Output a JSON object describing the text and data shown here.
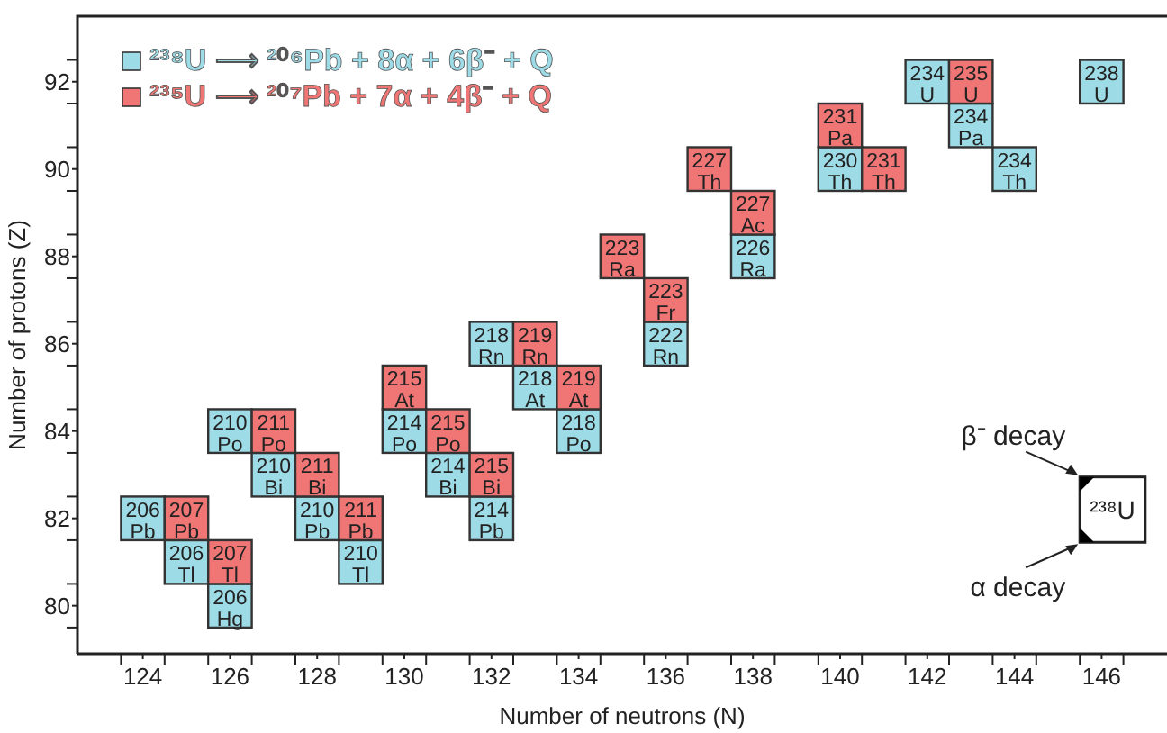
{
  "chart_data": {
    "type": "scatter",
    "marker": "square",
    "legend": "top left",
    "xlabel": "Number of neutrons (N)",
    "ylabel": "Number of protons (Z)",
    "xlim": [
      122.5,
      147.5
    ],
    "ylim": [
      78.9,
      93.5
    ],
    "xticks": [
      {
        "value": 123.5,
        "label": null
      },
      124,
      {
        "value": 124.5,
        "label": null
      },
      {
        "value": 125.5,
        "label": null
      },
      126,
      {
        "value": 126.5,
        "label": null
      },
      {
        "value": 127.5,
        "label": null
      },
      128,
      {
        "value": 128.5,
        "label": null
      },
      {
        "value": 129.5,
        "label": null
      },
      130,
      {
        "value": 130.5,
        "label": null
      },
      {
        "value": 131.5,
        "label": null
      },
      132,
      {
        "value": 132.5,
        "label": null
      },
      {
        "value": 133.5,
        "label": null
      },
      134,
      {
        "value": 134.5,
        "label": null
      },
      {
        "value": 135.5,
        "label": null
      },
      136,
      {
        "value": 136.5,
        "label": null
      },
      {
        "value": 137.5,
        "label": null
      },
      138,
      {
        "value": 138.5,
        "label": null
      },
      {
        "value": 139.5,
        "label": null
      },
      140,
      {
        "value": 140.5,
        "label": null
      },
      {
        "value": 141.5,
        "label": null
      },
      142,
      {
        "value": 142.5,
        "label": null
      },
      {
        "value": 143.5,
        "label": null
      },
      144,
      {
        "value": 144.5,
        "label": null
      },
      {
        "value": 145.5,
        "label": null
      },
      146,
      {
        "value": 146.5,
        "label": null
      }
    ],
    "yticks": [
      {
        "value": 79.5,
        "label": null
      },
      80,
      {
        "value": 80.5,
        "label": null
      },
      {
        "value": 81.5,
        "label": null
      },
      82,
      {
        "value": 82.5,
        "label": null
      },
      {
        "value": 83.5,
        "label": null
      },
      84,
      {
        "value": 84.5,
        "label": null
      },
      {
        "value": 85.5,
        "label": null
      },
      86,
      {
        "value": 86.5,
        "label": null
      },
      {
        "value": 87.5,
        "label": null
      },
      88,
      {
        "value": 88.5,
        "label": null
      },
      {
        "value": 89.5,
        "label": null
      },
      90,
      {
        "value": 90.5,
        "label": null
      },
      {
        "value": 91.5,
        "label": null
      },
      92,
      {
        "value": 92.5,
        "label": null
      }
    ],
    "series": [
      {
        "name": "²³⁸U ⟶ ²⁰⁶Pb + 8α + 6β⁻ + Q",
        "color": "#9ddbe6",
        "x": [
          146,
          144,
          143,
          142,
          140,
          138,
          136,
          134,
          133,
          132,
          132,
          131,
          130,
          129,
          128,
          127,
          126,
          125,
          126,
          124
        ],
        "values": [
          92,
          90,
          91,
          92,
          90,
          88,
          86,
          84,
          85,
          86,
          82,
          83,
          84,
          81,
          82,
          83,
          84,
          81,
          80,
          82
        ]
      },
      {
        "name": "²³⁵U ⟶ ²⁰⁷Pb + 7α + 4β⁻ + Q",
        "color": "#f07575",
        "x": [
          143,
          141,
          140,
          138,
          137,
          136,
          135,
          133,
          134,
          131,
          130,
          132,
          129,
          128,
          127,
          126,
          125
        ],
        "values": [
          92,
          90,
          91,
          89,
          90,
          87,
          88,
          86,
          85,
          84,
          85,
          83,
          82,
          83,
          84,
          81,
          82
        ]
      }
    ],
    "annotations": [
      "β⁻ decay",
      "α decay",
      "²³⁸U",
      {
        "text": "238 U",
        "x": 146,
        "y": 92
      },
      {
        "text": "234 Th",
        "x": 144,
        "y": 90
      },
      {
        "text": "234 Pa",
        "x": 143,
        "y": 91
      },
      {
        "text": "234 U",
        "x": 142,
        "y": 92
      },
      {
        "text": "230 Th",
        "x": 140,
        "y": 90
      },
      {
        "text": "226 Ra",
        "x": 138,
        "y": 88
      },
      {
        "text": "222 Rn",
        "x": 136,
        "y": 86
      },
      {
        "text": "218 Po",
        "x": 134,
        "y": 84
      },
      {
        "text": "218 At",
        "x": 133,
        "y": 85
      },
      {
        "text": "218 Rn",
        "x": 132,
        "y": 86
      },
      {
        "text": "214 Pb",
        "x": 132,
        "y": 82
      },
      {
        "text": "214 Bi",
        "x": 131,
        "y": 83
      },
      {
        "text": "214 Po",
        "x": 130,
        "y": 84
      },
      {
        "text": "210 Tl",
        "x": 129,
        "y": 81
      },
      {
        "text": "210 Pb",
        "x": 128,
        "y": 82
      },
      {
        "text": "210 Bi",
        "x": 127,
        "y": 83
      },
      {
        "text": "210 Po",
        "x": 126,
        "y": 84
      },
      {
        "text": "206 Tl",
        "x": 125,
        "y": 81
      },
      {
        "text": "206 Hg",
        "x": 126,
        "y": 80
      },
      {
        "text": "206 Pb",
        "x": 124,
        "y": 82
      },
      {
        "text": "235 U",
        "x": 143,
        "y": 92
      },
      {
        "text": "231 Th",
        "x": 141,
        "y": 90
      },
      {
        "text": "231 Pa",
        "x": 140,
        "y": 91
      },
      {
        "text": "227 Ac",
        "x": 138,
        "y": 89
      },
      {
        "text": "227 Th",
        "x": 137,
        "y": 90
      },
      {
        "text": "223 Fr",
        "x": 136,
        "y": 87
      },
      {
        "text": "223 Ra",
        "x": 135,
        "y": 88
      },
      {
        "text": "219 Rn",
        "x": 133,
        "y": 86
      },
      {
        "text": "219 At",
        "x": 134,
        "y": 85
      },
      {
        "text": "215 Po",
        "x": 131,
        "y": 84
      },
      {
        "text": "215 At",
        "x": 130,
        "y": 85
      },
      {
        "text": "215 Bi",
        "x": 132,
        "y": 83
      },
      {
        "text": "211 Pb",
        "x": 129,
        "y": 82
      },
      {
        "text": "211 Bi",
        "x": 128,
        "y": 83
      },
      {
        "text": "211 Po",
        "x": 127,
        "y": 84
      },
      {
        "text": "207 Tl",
        "x": 126,
        "y": 81
      },
      {
        "text": "207 Pb",
        "x": 125,
        "y": 82
      }
    ]
  }
}
